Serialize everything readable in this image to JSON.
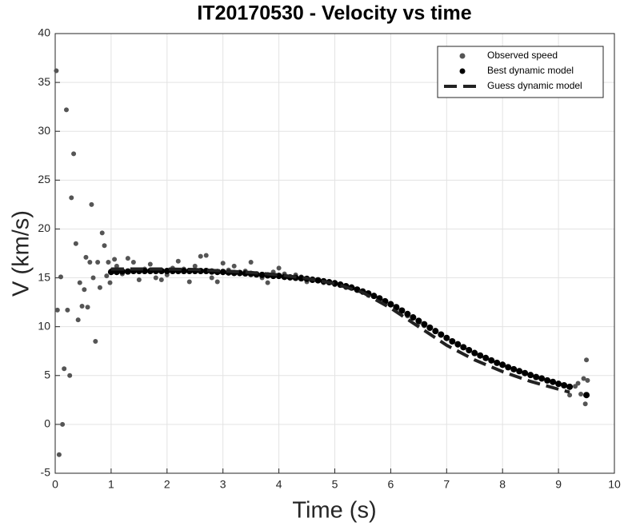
{
  "chart_data": {
    "type": "scatter",
    "title": "IT20170530 - Velocity vs time",
    "x_label": "Time (s)",
    "y_label": "V (km/s)",
    "xlim": [
      0,
      10
    ],
    "xticks": [
      0,
      1,
      2,
      3,
      4,
      5,
      6,
      7,
      8,
      9,
      10
    ],
    "ylim": [
      -5,
      40
    ],
    "yticks": [
      -5,
      0,
      5,
      10,
      15,
      20,
      25,
      30,
      35,
      40
    ],
    "grid": true,
    "legend": "upper right",
    "series": [
      {
        "name": "Observed speed",
        "color": "#555555",
        "style": "markers",
        "x": [
          0.02,
          0.04,
          0.07,
          0.1,
          0.13,
          0.16,
          0.2,
          0.22,
          0.26,
          0.29,
          0.33,
          0.37,
          0.41,
          0.44,
          0.48,
          0.52,
          0.55,
          0.58,
          0.62,
          0.65,
          0.68,
          0.72,
          0.76,
          0.8,
          0.84,
          0.88,
          0.92,
          0.95,
          0.98,
          1.02,
          1.06,
          1.1,
          1.2,
          1.3,
          1.4,
          1.5,
          1.6,
          1.7,
          1.8,
          1.9,
          2.0,
          2.1,
          2.2,
          2.3,
          2.4,
          2.5,
          2.6,
          2.7,
          2.8,
          2.9,
          3.0,
          3.1,
          3.2,
          3.3,
          3.4,
          3.5,
          3.6,
          3.7,
          3.8,
          3.9,
          4.0,
          4.1,
          4.2,
          4.3,
          4.4,
          4.5,
          4.6,
          4.7,
          4.8,
          4.9,
          5.0,
          5.1,
          5.2,
          5.3,
          5.4,
          5.5,
          5.6,
          5.7,
          5.8,
          5.9,
          6.0,
          6.1,
          6.2,
          6.3,
          6.4,
          6.5,
          6.6,
          6.7,
          6.8,
          6.9,
          7.0,
          7.1,
          7.2,
          7.3,
          7.4,
          7.5,
          7.6,
          7.7,
          7.8,
          7.9,
          8.0,
          8.1,
          8.2,
          8.3,
          8.4,
          8.5,
          8.6,
          8.7,
          8.8,
          8.9,
          9.0,
          9.1,
          9.2,
          9.3,
          9.35,
          9.4,
          9.45,
          9.48,
          9.5,
          9.52
        ],
        "values": [
          36.2,
          11.7,
          -3.1,
          15.1,
          0.0,
          5.7,
          32.2,
          11.7,
          5.0,
          23.2,
          27.7,
          18.5,
          10.7,
          14.5,
          12.1,
          13.8,
          17.1,
          12.0,
          16.6,
          22.5,
          15.0,
          8.5,
          16.6,
          14.0,
          19.6,
          18.3,
          15.2,
          16.6,
          14.5,
          15.8,
          16.9,
          16.2,
          15.4,
          17.0,
          16.6,
          14.8,
          15.9,
          16.4,
          15.0,
          14.8,
          15.3,
          16.0,
          16.7,
          15.9,
          14.6,
          16.2,
          17.2,
          17.3,
          15.0,
          14.6,
          16.5,
          15.8,
          16.2,
          15.4,
          15.7,
          16.6,
          15.3,
          15.0,
          14.5,
          15.6,
          16.0,
          15.4,
          15.0,
          15.3,
          15.1,
          14.6,
          14.9,
          14.7,
          14.5,
          14.6,
          14.3,
          14.4,
          14.0,
          14.1,
          13.7,
          13.5,
          13.2,
          13.2,
          12.8,
          12.5,
          12.2,
          11.8,
          11.6,
          11.1,
          10.9,
          10.4,
          10.1,
          9.8,
          9.5,
          9.1,
          8.9,
          8.5,
          8.1,
          7.9,
          7.6,
          7.4,
          7.0,
          6.8,
          6.6,
          6.3,
          6.2,
          5.9,
          5.7,
          5.4,
          5.3,
          5.0,
          4.9,
          4.8,
          4.5,
          4.3,
          4.1,
          4.0,
          3.0,
          3.9,
          4.2,
          3.1,
          4.7,
          2.1,
          6.6,
          4.5
        ]
      },
      {
        "name": "Best dynamic model",
        "color": "#000000",
        "style": "dense-markers",
        "x": [
          1.0,
          1.1,
          1.2,
          1.3,
          1.4,
          1.5,
          1.6,
          1.7,
          1.8,
          1.9,
          2.0,
          2.1,
          2.2,
          2.3,
          2.4,
          2.5,
          2.6,
          2.7,
          2.8,
          2.9,
          3.0,
          3.1,
          3.2,
          3.3,
          3.4,
          3.5,
          3.6,
          3.7,
          3.8,
          3.9,
          4.0,
          4.1,
          4.2,
          4.3,
          4.4,
          4.5,
          4.6,
          4.7,
          4.8,
          4.9,
          5.0,
          5.1,
          5.2,
          5.3,
          5.4,
          5.5,
          5.6,
          5.7,
          5.8,
          5.9,
          6.0,
          6.1,
          6.2,
          6.3,
          6.4,
          6.5,
          6.6,
          6.7,
          6.8,
          6.9,
          7.0,
          7.1,
          7.2,
          7.3,
          7.4,
          7.5,
          7.6,
          7.7,
          7.8,
          7.9,
          8.0,
          8.1,
          8.2,
          8.3,
          8.4,
          8.5,
          8.6,
          8.7,
          8.8,
          8.9,
          9.0,
          9.1,
          9.2,
          9.5
        ],
        "values": [
          15.6,
          15.6,
          15.65,
          15.65,
          15.7,
          15.7,
          15.7,
          15.7,
          15.7,
          15.7,
          15.7,
          15.7,
          15.7,
          15.7,
          15.7,
          15.7,
          15.7,
          15.7,
          15.65,
          15.6,
          15.6,
          15.55,
          15.5,
          15.5,
          15.45,
          15.4,
          15.35,
          15.3,
          15.25,
          15.2,
          15.2,
          15.1,
          15.05,
          15.0,
          14.95,
          14.9,
          14.8,
          14.75,
          14.65,
          14.55,
          14.45,
          14.3,
          14.15,
          14.0,
          13.8,
          13.6,
          13.4,
          13.15,
          12.9,
          12.6,
          12.3,
          12.0,
          11.65,
          11.3,
          10.95,
          10.6,
          10.25,
          9.9,
          9.55,
          9.2,
          8.85,
          8.5,
          8.2,
          7.9,
          7.6,
          7.3,
          7.05,
          6.8,
          6.55,
          6.3,
          6.1,
          5.85,
          5.65,
          5.45,
          5.25,
          5.05,
          4.85,
          4.7,
          4.5,
          4.35,
          4.15,
          4.0,
          3.85,
          3.0
        ]
      },
      {
        "name": "Guess dynamic model",
        "color": "#222222",
        "style": "dashed",
        "x": [
          1.0,
          1.5,
          2.0,
          2.5,
          3.0,
          3.5,
          4.0,
          4.5,
          5.0,
          5.5,
          6.0,
          6.5,
          7.0,
          7.5,
          8.0,
          8.5,
          9.0,
          9.2
        ],
        "values": [
          15.9,
          15.9,
          15.9,
          15.85,
          15.7,
          15.55,
          15.3,
          14.95,
          14.4,
          13.5,
          11.9,
          10.0,
          8.1,
          6.6,
          5.4,
          4.4,
          3.6,
          3.3
        ]
      }
    ]
  }
}
